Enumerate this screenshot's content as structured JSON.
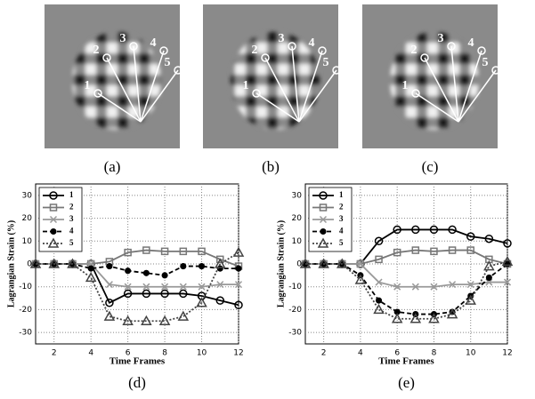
{
  "image_panels": [
    {
      "label": "(a)",
      "markers": [
        "1",
        "2",
        "3",
        "4",
        "5"
      ]
    },
    {
      "label": "(b)",
      "markers": [
        "1",
        "2",
        "3",
        "4",
        "5"
      ]
    },
    {
      "label": "(c)",
      "markers": [
        "1",
        "2",
        "3",
        "4",
        "5"
      ]
    }
  ],
  "chart_data": [
    {
      "type": "line",
      "panel_label": "(d)",
      "y_label": "Lagrangian Strain (%)",
      "x_label": "Time Frames",
      "x": [
        1,
        2,
        3,
        4,
        5,
        6,
        7,
        8,
        9,
        10,
        11,
        12
      ],
      "xlim": [
        1,
        12
      ],
      "xticks": [
        2,
        4,
        6,
        8,
        10,
        12
      ],
      "ylim": [
        -35,
        35
      ],
      "yticks": [
        -30,
        -20,
        -10,
        0,
        10,
        20,
        30
      ],
      "grid": true,
      "legend": "upper left",
      "series": [
        {
          "name": "1",
          "color": "#000000",
          "marker": "circle",
          "dash": "solid",
          "values": [
            0,
            0,
            0,
            0,
            -17,
            -13,
            -13,
            -13,
            -13,
            -14,
            -16,
            -18
          ]
        },
        {
          "name": "2",
          "color": "#777777",
          "marker": "square",
          "dash": "solid",
          "values": [
            0,
            0,
            0,
            0,
            1,
            5,
            6,
            5.5,
            5.5,
            5.5,
            2,
            -1
          ]
        },
        {
          "name": "3",
          "color": "#999999",
          "marker": "x",
          "dash": "solid",
          "values": [
            0,
            0,
            0,
            0,
            -9,
            -10,
            -10,
            -10,
            -10,
            -10,
            -9,
            -9
          ]
        },
        {
          "name": "4",
          "color": "#000000",
          "marker": "dot",
          "dash": "dashed",
          "values": [
            0,
            0,
            0,
            -2,
            -1,
            -3,
            -4,
            -5,
            -1,
            -1,
            -2,
            -2
          ]
        },
        {
          "name": "5",
          "color": "#444444",
          "marker": "triangle",
          "dash": "dotted",
          "values": [
            0,
            0,
            0,
            -6,
            -23,
            -25,
            -25,
            -25,
            -23,
            -17,
            0,
            5
          ]
        }
      ]
    },
    {
      "type": "line",
      "panel_label": "(e)",
      "y_label": "Lagrangian Strain (%)",
      "x_label": "Time Frames",
      "x": [
        1,
        2,
        3,
        4,
        5,
        6,
        7,
        8,
        9,
        10,
        11,
        12
      ],
      "xlim": [
        1,
        12
      ],
      "xticks": [
        2,
        4,
        6,
        8,
        10,
        12
      ],
      "ylim": [
        -35,
        35
      ],
      "yticks": [
        -30,
        -20,
        -10,
        0,
        10,
        20,
        30
      ],
      "grid": true,
      "legend": "upper left",
      "series": [
        {
          "name": "1",
          "color": "#000000",
          "marker": "circle",
          "dash": "solid",
          "values": [
            0,
            0,
            0,
            0,
            10,
            15,
            15,
            15,
            15,
            12,
            11,
            9
          ]
        },
        {
          "name": "2",
          "color": "#777777",
          "marker": "square",
          "dash": "solid",
          "values": [
            0,
            0,
            0,
            0,
            2,
            5,
            6,
            5.5,
            6,
            6,
            2,
            0
          ]
        },
        {
          "name": "3",
          "color": "#999999",
          "marker": "x",
          "dash": "solid",
          "values": [
            0,
            0,
            0,
            0,
            -8,
            -10,
            -10,
            -10,
            -9,
            -9,
            -8,
            -8
          ]
        },
        {
          "name": "4",
          "color": "#000000",
          "marker": "dot",
          "dash": "dashed",
          "values": [
            0,
            0,
            0,
            -5,
            -16,
            -21,
            -22,
            -22,
            -21,
            -14,
            -6,
            0
          ]
        },
        {
          "name": "5",
          "color": "#444444",
          "marker": "triangle",
          "dash": "dotted",
          "values": [
            0,
            0,
            0,
            -7,
            -20,
            -24,
            -24,
            -24,
            -22,
            -16,
            -1,
            1
          ]
        }
      ]
    }
  ]
}
